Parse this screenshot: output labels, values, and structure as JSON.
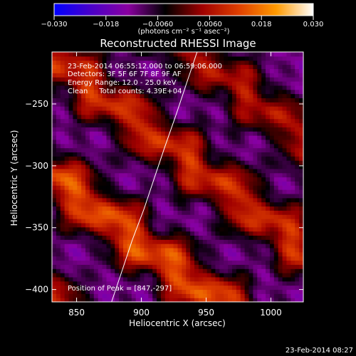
{
  "colorbar": {
    "ticks": [
      "−0.030",
      "−0.018",
      "−0.0060",
      "0.0060",
      "0.018",
      "0.030"
    ],
    "unit_label": "(photons cm⁻² s⁻¹ asec⁻²)",
    "min": -0.03,
    "max": 0.03,
    "colors": [
      "#0000ff",
      "#4a00c8",
      "#8a00a0",
      "#000000",
      "#a00000",
      "#e04000",
      "#ff9a00",
      "#ffffff"
    ]
  },
  "chart_data": {
    "type": "heatmap",
    "title": "Reconstructed RHESSI Image",
    "xlabel": "Heliocentric X (arcsec)",
    "ylabel": "Heliocentric Y (arcsec)",
    "xlim": [
      831,
      1025
    ],
    "ylim": [
      -410,
      -208
    ],
    "x_ticks": [
      "850",
      "900",
      "950",
      "1000"
    ],
    "y_ticks": [
      "−250",
      "−300",
      "−350",
      "−400"
    ],
    "x_tick_values": [
      850,
      900,
      950,
      1000
    ],
    "y_tick_values": [
      -250,
      -300,
      -350,
      -400
    ],
    "grid": false,
    "limb_curve": [
      [
        877,
        -410
      ],
      [
        885,
        -385
      ],
      [
        893,
        -360
      ],
      [
        902,
        -335
      ],
      [
        910,
        -310
      ],
      [
        918,
        -285
      ],
      [
        927,
        -258
      ],
      [
        935,
        -233
      ],
      [
        943,
        -208
      ]
    ],
    "bands": [
      {
        "center_offset": -60,
        "strength": 0.02
      },
      {
        "center_offset": 20,
        "strength": 0.026
      },
      {
        "center_offset": 95,
        "strength": 0.022
      },
      {
        "center_offset": 165,
        "strength": 0.018
      }
    ]
  },
  "annotations": {
    "time_range": "23-Feb-2014 06:55:12.000 to 06:59:06.000",
    "detectors": "Detectors: 3F 5F 6F 7F 8F 9F AF",
    "energy_range": "Energy Range: 12.0 - 25.0 keV",
    "clean_counts": "Clean     Total counts: 4.39E+04",
    "peak_position": "Position of Peak = [847,-297]"
  },
  "footer_timestamp": "23-Feb-2014 08:27"
}
